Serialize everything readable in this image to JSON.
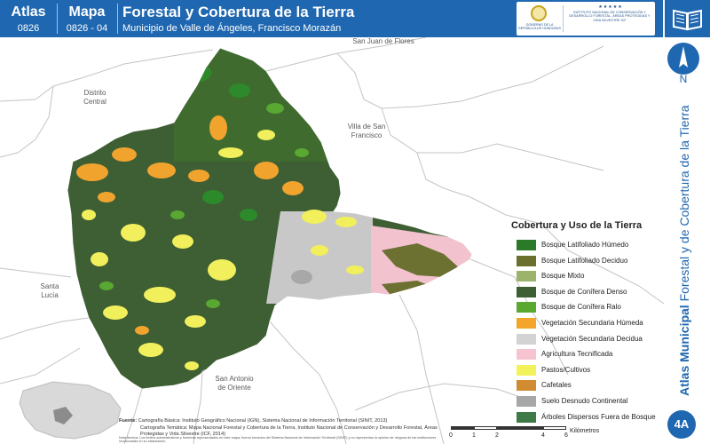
{
  "header": {
    "atlas_label": "Atlas",
    "atlas_number": "0826",
    "mapa_label": "Mapa",
    "mapa_number": "0826 - 04",
    "title": "Forestal y Cobertura de la Tierra",
    "subtitle": "Municipio de Valle de Ángeles, Francisco Morazán",
    "gov_logo_text": "GOBIERNO DE LA REPÚBLICA DE HONDURAS",
    "inst_logo_text": "INSTITUTO NACIONAL DE CONSERVACIÓN Y DESARROLLO FORESTAL, ÁREAS PROTEGIDAS Y VIDA SILVESTRE",
    "inst_logo_abbr": "ICF",
    "inst_logo_stars": "★★★★★"
  },
  "north_arrow": {
    "label": "N"
  },
  "side_title": {
    "bold": "Atlas Municipal",
    "rest": "Forestal y de Cobertura de la Tierra"
  },
  "map_badge": "4A",
  "places": {
    "san_juan": "San Juan de Flores",
    "distrito": "Distrito\nCentral",
    "villa": "Villa de San\nFrancisco",
    "santa_lucia": "Santa\nLucía",
    "san_antonio": "San Antonio\nde Oriente"
  },
  "legend": {
    "title": "Cobertura y Uso de la Tierra",
    "items": [
      {
        "label": "Bosque Latifoliado Húmedo",
        "color": "#2a7a2a"
      },
      {
        "label": "Bosque Latifoliado Deciduo",
        "color": "#6b6f2e"
      },
      {
        "label": "Bosque Mixto",
        "color": "#9bb36a"
      },
      {
        "label": "Bosque de Conífera Denso",
        "color": "#3e5e34"
      },
      {
        "label": "Bosque de Conífera Ralo",
        "color": "#5aa830"
      },
      {
        "label": "Vegetación Secundaria Húmeda",
        "color": "#f4a62a"
      },
      {
        "label": "Vegetación Secundaria Decidua",
        "color": "#d3d3d3"
      },
      {
        "label": "Agricultura Tecnificada",
        "color": "#f6c3d0"
      },
      {
        "label": "Pastos/Cultivos",
        "color": "#f4f25a"
      },
      {
        "label": "Cafetales",
        "color": "#d18b30"
      },
      {
        "label": "Suelo Desnudo Continental",
        "color": "#a7a7a7"
      },
      {
        "label": "Árboles Dispersos Fuera de Bosque",
        "color": "#3e7a46"
      }
    ]
  },
  "sources": {
    "line1_label": "Fuente:",
    "line1": "Cartografía Básica: Instituto Geográfico Nacional (IGN), Sistema Nacional de Información Territorial (SINIT, 2013)",
    "line2": "Cartografía Temática: Mapa Nacional Forestal y Cobertura de la Tierra, Instituto Nacional de Conservación y Desarrollo Forestal, Áreas Protegidas y Vida Silvestre (ICF, 2014)",
    "notes": "Nota técnica: Los límites administrativos y fronteras representados en este mapa, fueron tomados del Sistema Nacional de Información Territorial (SINIT) y no representan la opinión de ninguna de las instituciones involucradas en su elaboración."
  },
  "scale": {
    "ticks": [
      "0",
      "1",
      "2",
      "4",
      "6"
    ],
    "unit": "Kilómetros"
  }
}
